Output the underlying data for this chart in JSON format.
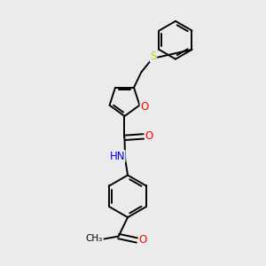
{
  "background_color": "#ebebeb",
  "atom_colors": {
    "N": "#0000ff",
    "O": "#ff0000",
    "S": "#cccc00"
  },
  "bond_color": "#000000",
  "bond_width": 1.4,
  "font_size_atom": 8.5
}
